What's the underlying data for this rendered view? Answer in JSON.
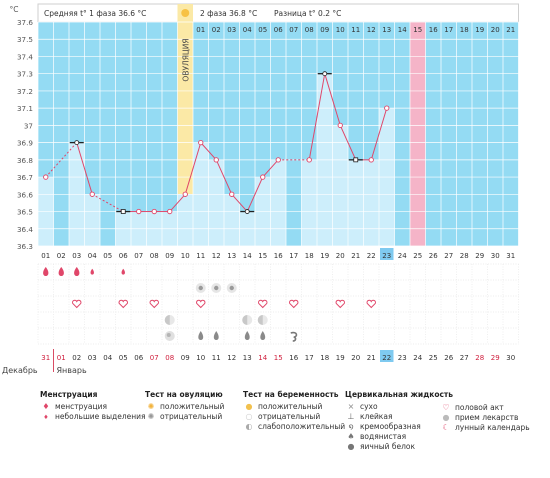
{
  "header": {
    "phase1": "Средняя t° 1 фаза 36.6 °C",
    "phase2": "2 фаза 36.8 °C",
    "diff": "Разница t° 0.2 °C"
  },
  "y_unit": "°C",
  "ovulation_label": "ОВУЛЯЦИЯ",
  "months": {
    "prev": "Декабрь",
    "cur": "Январь"
  },
  "colors": {
    "grid_bg": "#94dbf3",
    "bar": "#cdeefb",
    "line": "#e0476a",
    "ovulation": "#fbe9a6",
    "menses_day": "#f5b4c8",
    "today": "#7fcaf0"
  },
  "chart_data": {
    "type": "line",
    "ylim": [
      36.3,
      37.6
    ],
    "y_ticks": [
      "36.3",
      "36.4",
      "36.5",
      "36.6",
      "36.7",
      "36.8",
      "36.9",
      "37",
      "37.1",
      "37.2",
      "37.3",
      "37.4",
      "37.5",
      "37.6"
    ],
    "cycle_days_bottom": [
      "01",
      "02",
      "03",
      "04",
      "05",
      "06",
      "07",
      "08",
      "09",
      "10",
      "11",
      "12",
      "13",
      "14",
      "15",
      "16",
      "17",
      "18",
      "19",
      "20",
      "21",
      "22",
      "23",
      "24",
      "25",
      "26",
      "27",
      "28",
      "29",
      "30",
      "31"
    ],
    "phase2_days_top": [
      "01",
      "02",
      "03",
      "04",
      "05",
      "06",
      "07",
      "08",
      "09",
      "10",
      "11",
      "12",
      "13",
      "14",
      "15",
      "16",
      "17",
      "18",
      "19",
      "20",
      "21"
    ],
    "dates": [
      "31",
      "01",
      "02",
      "03",
      "04",
      "05",
      "06",
      "07",
      "08",
      "09",
      "10",
      "11",
      "12",
      "13",
      "14",
      "15",
      "16",
      "17",
      "18",
      "19",
      "20",
      "21",
      "22",
      "23",
      "24",
      "25",
      "26",
      "27",
      "28",
      "29",
      "30"
    ],
    "red_dates": [
      0,
      1,
      7,
      8,
      14,
      15,
      28,
      29
    ],
    "ovulation_day": 10,
    "highlight_day": 23,
    "pink_column_day": 25,
    "temps": [
      {
        "d": 1,
        "t": 36.7,
        "m": "circle"
      },
      {
        "d": 3,
        "t": 36.9,
        "m": "dash"
      },
      {
        "d": 4,
        "t": 36.6,
        "m": "circle"
      },
      {
        "d": 6,
        "t": 36.5,
        "m": "square"
      },
      {
        "d": 7,
        "t": 36.5,
        "m": "circle"
      },
      {
        "d": 8,
        "t": 36.5,
        "m": "circle"
      },
      {
        "d": 9,
        "t": 36.5,
        "m": "circle"
      },
      {
        "d": 10,
        "t": 36.6,
        "m": "circle"
      },
      {
        "d": 11,
        "t": 36.9,
        "m": "circle"
      },
      {
        "d": 12,
        "t": 36.8,
        "m": "circle"
      },
      {
        "d": 13,
        "t": 36.6,
        "m": "circle"
      },
      {
        "d": 14,
        "t": 36.5,
        "m": "dash"
      },
      {
        "d": 15,
        "t": 36.7,
        "m": "circle"
      },
      {
        "d": 16,
        "t": 36.8,
        "m": "circle"
      },
      {
        "d": 18,
        "t": 36.8,
        "m": "circle"
      },
      {
        "d": 19,
        "t": 37.3,
        "m": "dash"
      },
      {
        "d": 20,
        "t": 37.0,
        "m": "circle"
      },
      {
        "d": 21,
        "t": 36.8,
        "m": "square"
      },
      {
        "d": 22,
        "t": 36.8,
        "m": "circle"
      },
      {
        "d": 23,
        "t": 37.1,
        "m": "circle"
      }
    ],
    "menstruation": [
      {
        "d": 1,
        "k": "big"
      },
      {
        "d": 2,
        "k": "big"
      },
      {
        "d": 3,
        "k": "big"
      },
      {
        "d": 4,
        "k": "small"
      },
      {
        "d": 6,
        "k": "small"
      }
    ],
    "ovulation_tests": [
      {
        "d": 11,
        "k": "neg"
      },
      {
        "d": 12,
        "k": "neg"
      },
      {
        "d": 13,
        "k": "neg"
      }
    ],
    "intercourse": [
      3,
      6,
      8,
      11,
      15,
      17,
      20,
      22
    ],
    "pills": [
      {
        "d": 9,
        "k": "half"
      },
      {
        "d": 14,
        "k": "half"
      },
      {
        "d": 15,
        "k": "half"
      }
    ],
    "fluids": [
      {
        "d": 9,
        "k": "white"
      },
      {
        "d": 11,
        "k": "drop"
      },
      {
        "d": 12,
        "k": "drop"
      },
      {
        "d": 14,
        "k": "drop"
      },
      {
        "d": 15,
        "k": "drop"
      },
      {
        "d": 17,
        "k": "mucus"
      }
    ]
  },
  "legend": {
    "menstruation": {
      "title": "Менструация",
      "items": [
        "менструация",
        "небольшие выделения"
      ]
    },
    "ovulation_test": {
      "title": "Тест на овуляцию",
      "items": [
        "положительный",
        "отрицательный"
      ]
    },
    "pregnancy_test": {
      "title": "Тест на беременность",
      "items": [
        "положительный",
        "отрицательный",
        "слабоположительный"
      ]
    },
    "cervical": {
      "title": "Цервикальная жидкость",
      "items": [
        "сухо",
        "клейкая",
        "кремообразная",
        "водянистая",
        "яичный белок"
      ]
    },
    "other": {
      "items": [
        "половой акт",
        "прием лекарств",
        "лунный календарь"
      ]
    }
  }
}
